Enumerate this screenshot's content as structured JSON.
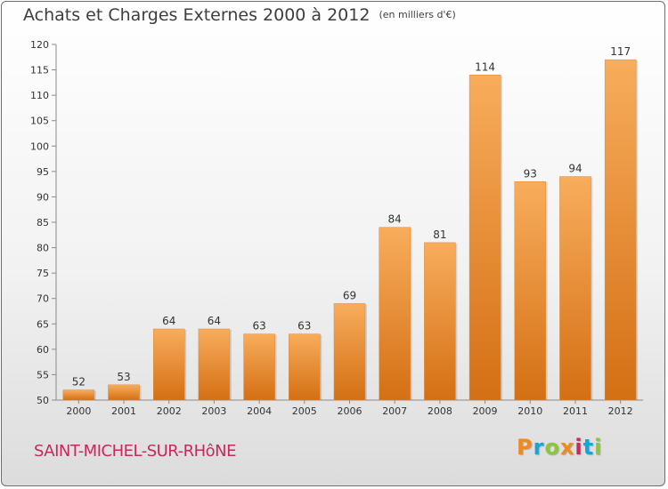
{
  "header": {
    "title": "Achats et Charges Externes 2000 à 2012",
    "unit": "(en milliers d'€)"
  },
  "footer": {
    "commune": "SAINT-MICHEL-SUR-RHôNE",
    "brand_letters": [
      "P",
      "r",
      "o",
      "x",
      "i",
      "t",
      "i"
    ],
    "brand_colors": [
      "#f08a1e",
      "#1aa3d8",
      "#8cc63f",
      "#f08a1e",
      "#c8285a",
      "#1aa3d8",
      "#8cc63f"
    ]
  },
  "chart_data": {
    "type": "bar",
    "categories": [
      "2000",
      "2001",
      "2002",
      "2003",
      "2004",
      "2005",
      "2006",
      "2007",
      "2008",
      "2009",
      "2010",
      "2011",
      "2012"
    ],
    "values": [
      52,
      53,
      64,
      64,
      63,
      63,
      69,
      84,
      81,
      114,
      93,
      94,
      117
    ],
    "ylim": [
      50,
      120
    ],
    "yticks": [
      50,
      55,
      60,
      65,
      70,
      75,
      80,
      85,
      90,
      95,
      100,
      105,
      110,
      115,
      120
    ],
    "grid": false,
    "bar_color": "#f0943a",
    "bar_color_light": "#f8ad5c",
    "bar_color_dark": "#d46f14"
  }
}
